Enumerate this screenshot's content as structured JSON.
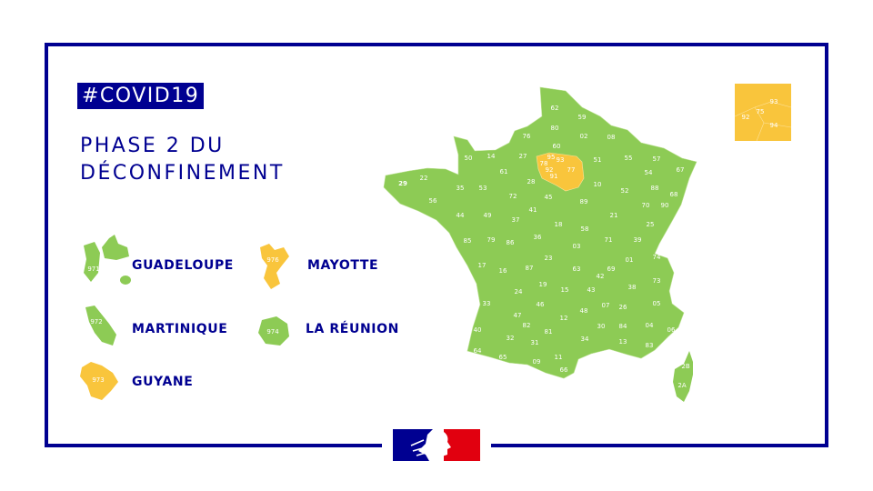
{
  "hashtag": "#COVID19",
  "title_line1": "PHASE 2 DU",
  "title_line2": "DÉCONFINEMENT",
  "colors": {
    "green": "#8dcb55",
    "orange": "#f9c53c",
    "navy": "#000091",
    "red": "#e1000f"
  },
  "legend_status": {
    "green": "vert",
    "orange": "orange"
  },
  "overseas": [
    {
      "code": "971",
      "name": "GUADELOUPE",
      "status": "green"
    },
    {
      "code": "976",
      "name": "MAYOTTE",
      "status": "orange"
    },
    {
      "code": "972",
      "name": "MARTINIQUE",
      "status": "green"
    },
    {
      "code": "974",
      "name": "LA RÉUNION",
      "status": "green"
    },
    {
      "code": "973",
      "name": "GUYANE",
      "status": "orange"
    }
  ],
  "paris_inset": [
    "93",
    "75",
    "92",
    "94"
  ],
  "departments_green": [
    "62",
    "59",
    "80",
    "76",
    "02",
    "08",
    "60",
    "50",
    "14",
    "27",
    "51",
    "55",
    "57",
    "54",
    "67",
    "29",
    "22",
    "35",
    "53",
    "61",
    "72",
    "28",
    "45",
    "10",
    "52",
    "88",
    "68",
    "56",
    "44",
    "49",
    "37",
    "41",
    "18",
    "89",
    "21",
    "70",
    "90",
    "25",
    "58",
    "85",
    "79",
    "86",
    "36",
    "71",
    "39",
    "03",
    "74",
    "01",
    "23",
    "17",
    "16",
    "87",
    "63",
    "69",
    "42",
    "38",
    "73",
    "19",
    "24",
    "15",
    "43",
    "33",
    "46",
    "07",
    "26",
    "05",
    "48",
    "47",
    "12",
    "30",
    "84",
    "04",
    "06",
    "40",
    "82",
    "81",
    "32",
    "34",
    "13",
    "83",
    "31",
    "64",
    "65",
    "09",
    "11",
    "66",
    "2B",
    "2A"
  ],
  "departments_orange": [
    "78",
    "95",
    "93",
    "92",
    "91",
    "77"
  ],
  "logo": "Gouvernement"
}
